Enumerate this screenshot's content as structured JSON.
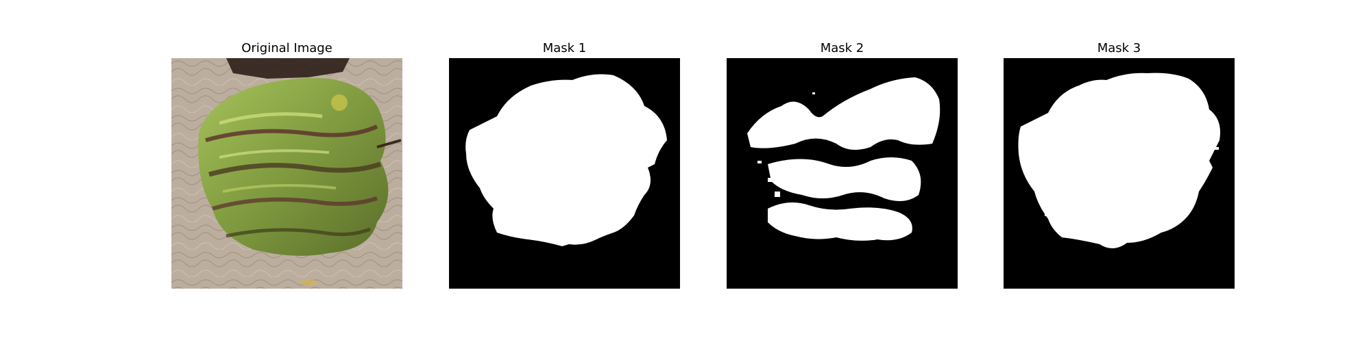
{
  "figure": {
    "panels": [
      {
        "title": "Original Image",
        "kind": "photo"
      },
      {
        "title": "Mask 1",
        "kind": "mask"
      },
      {
        "title": "Mask 2",
        "kind": "mask"
      },
      {
        "title": "Mask 3",
        "kind": "mask"
      }
    ]
  },
  "colors": {
    "background": "#ffffff",
    "mask_background": "#000000",
    "mask_foreground": "#ffffff",
    "photo_background": "#bfb09f",
    "leaf_green": "#8aa84b",
    "leaf_dark": "#4d5a26",
    "leaf_purple": "#5a2e2c"
  }
}
